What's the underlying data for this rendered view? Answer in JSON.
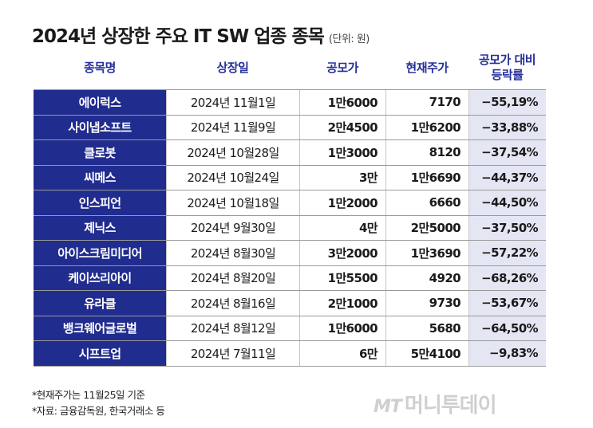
{
  "title": "2024년 상장한 주요 IT SW 업종 종목",
  "unit": "(단위: 원)",
  "chart_data": {
    "type": "table",
    "columns": [
      "종목명",
      "상장일",
      "공모가",
      "현재주가",
      "공모가 대비\n등락률"
    ],
    "rows": [
      [
        "에이럭스",
        "2024년 11월1일",
        "1만6000",
        "7170",
        "−55,19%"
      ],
      [
        "사이냅소프트",
        "2024년 11월9일",
        "2만4500",
        "1만6200",
        "−33,88%"
      ],
      [
        "클로봇",
        "2024년 10월28일",
        "1만3000",
        "8120",
        "−37,54%"
      ],
      [
        "씨메스",
        "2024년 10월24일",
        "3만",
        "1만6690",
        "−44,37%"
      ],
      [
        "인스피언",
        "2024년 10월18일",
        "1만2000",
        "6660",
        "−44,50%"
      ],
      [
        "제닉스",
        "2024년 9월30일",
        "4만",
        "2만5000",
        "−37,50%"
      ],
      [
        "아이스크림미디어",
        "2024년 8월30일",
        "3만2000",
        "1만3690",
        "−57,22%"
      ],
      [
        "케이쓰리아이",
        "2024년 8월20일",
        "1만5500",
        "4920",
        "−68,26%"
      ],
      [
        "유라클",
        "2024년 8월16일",
        "2만1000",
        "9730",
        "−53,67%"
      ],
      [
        "뱅크웨어글로벌",
        "2024년 8월12일",
        "1만6000",
        "5680",
        "−64,50%"
      ],
      [
        "시프트업",
        "2024년 7월11일",
        "6만",
        "5만4100",
        "−9,83%"
      ]
    ]
  },
  "notes": [
    "*현재주가는 11월25일 기준",
    "*자료: 금융감독원, 한국거래소 등"
  ],
  "logo": {
    "mark": "MT",
    "text": "머니투데이"
  },
  "colors": {
    "header_text": "#26309a",
    "name_cell": "#202c8e",
    "rate_cell": "#e4e6f4"
  }
}
